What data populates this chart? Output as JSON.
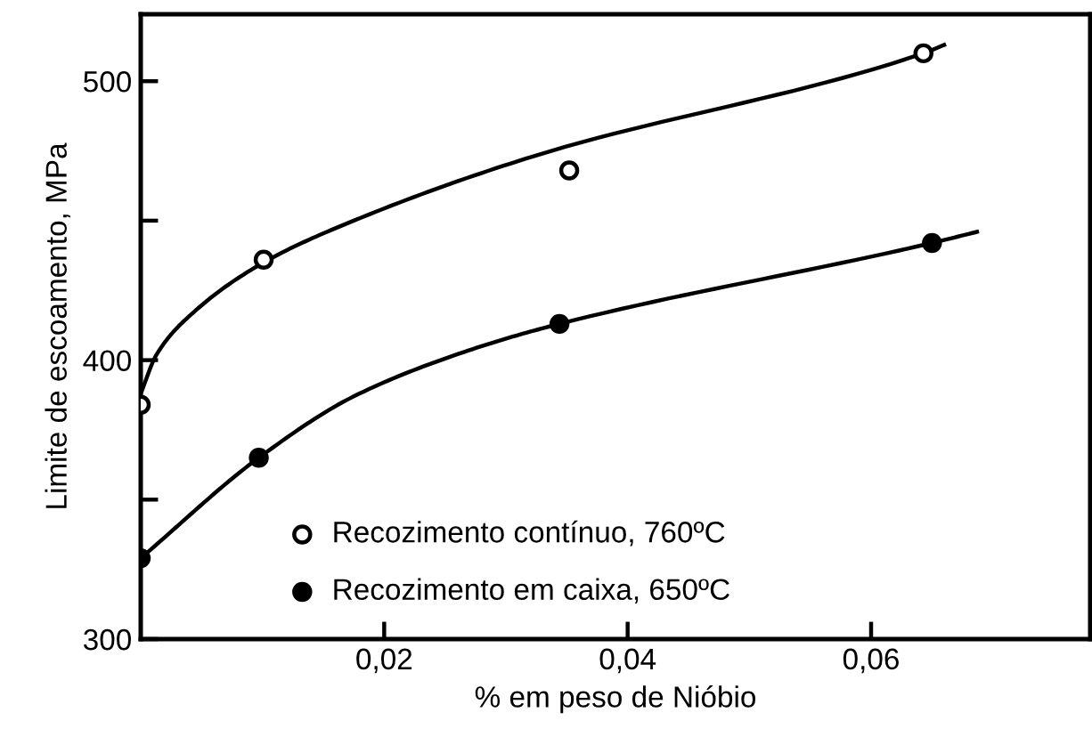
{
  "chart_data": {
    "type": "scatter",
    "xlabel": "% em peso de Nióbio",
    "ylabel": "Limite de escoamento, MPa",
    "xlim": [
      0,
      0.078
    ],
    "ylim": [
      300,
      524
    ],
    "xticks": [
      {
        "value": 0.02,
        "label": "0,02"
      },
      {
        "value": 0.04,
        "label": "0,04"
      },
      {
        "value": 0.06,
        "label": "0,06"
      }
    ],
    "yticks": [
      300,
      {
        "value": 350,
        "label": null
      },
      400,
      {
        "value": 450,
        "label": null
      },
      500
    ],
    "grid": false,
    "legend": "bottom",
    "series": [
      {
        "name": "Recozimento contínuo, 760ºC",
        "color": "#000000",
        "marker": "circle",
        "x": [
          0,
          0.0101,
          0.0352,
          0.0643
        ],
        "values": [
          384,
          436,
          468,
          510
        ]
      },
      {
        "name": "Recozimento em caixa, 650ºC",
        "color": "#000000",
        "marker": "circle",
        "x": [
          0,
          0.0097,
          0.0344,
          0.065
        ],
        "values": [
          329,
          365,
          413,
          442
        ]
      },
      {
        "type": "line",
        "color": "#000000",
        "x": [
          0,
          0.0013,
          0.0043,
          0.0101,
          0.0175,
          0.0322,
          0.0643,
          0.066
        ],
        "values": [
          388,
          402,
          417,
          435,
          450,
          473,
          510,
          513
        ]
      },
      {
        "type": "line",
        "color": "#000000",
        "x": [
          0,
          0.0097,
          0.0175,
          0.0273,
          0.0344,
          0.065,
          0.0687
        ],
        "values": [
          329,
          365,
          387,
          404,
          413,
          442,
          446
        ]
      }
    ]
  }
}
